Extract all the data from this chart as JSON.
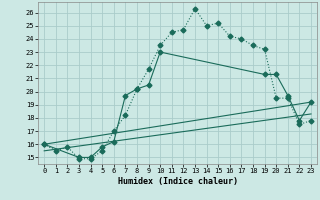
{
  "xlabel": "Humidex (Indice chaleur)",
  "background_color": "#cce8e4",
  "grid_color": "#aaccca",
  "line_color": "#1a6b5a",
  "xlim": [
    -0.5,
    23.5
  ],
  "ylim": [
    14.5,
    26.8
  ],
  "xticks": [
    0,
    1,
    2,
    3,
    4,
    5,
    6,
    7,
    8,
    9,
    10,
    11,
    12,
    13,
    14,
    15,
    16,
    17,
    18,
    19,
    20,
    21,
    22,
    23
  ],
  "yticks": [
    15,
    16,
    17,
    18,
    19,
    20,
    21,
    22,
    23,
    24,
    25,
    26
  ],
  "line1_x": [
    0,
    1,
    2,
    3,
    4,
    5,
    6,
    7,
    8,
    9,
    10,
    11,
    12,
    13,
    14,
    15,
    16,
    17,
    18,
    19,
    20,
    21,
    22,
    23
  ],
  "line1_y": [
    16.0,
    15.5,
    15.8,
    14.9,
    14.9,
    15.5,
    17.0,
    18.2,
    20.2,
    21.7,
    23.5,
    24.5,
    24.7,
    26.3,
    25.0,
    25.2,
    24.2,
    24.0,
    23.5,
    23.2,
    19.5,
    19.5,
    17.5,
    17.8
  ],
  "line2_x": [
    0,
    3,
    4,
    5,
    6,
    7,
    8,
    9,
    10,
    19,
    20,
    21,
    22,
    23
  ],
  "line2_y": [
    16.0,
    15.0,
    15.0,
    15.8,
    16.2,
    19.7,
    20.2,
    20.5,
    23.0,
    21.3,
    21.3,
    19.7,
    17.8,
    19.2
  ],
  "line3_x": [
    0,
    23
  ],
  "line3_y": [
    16.0,
    19.2
  ],
  "line4_x": [
    0,
    23
  ],
  "line4_y": [
    15.5,
    18.3
  ]
}
